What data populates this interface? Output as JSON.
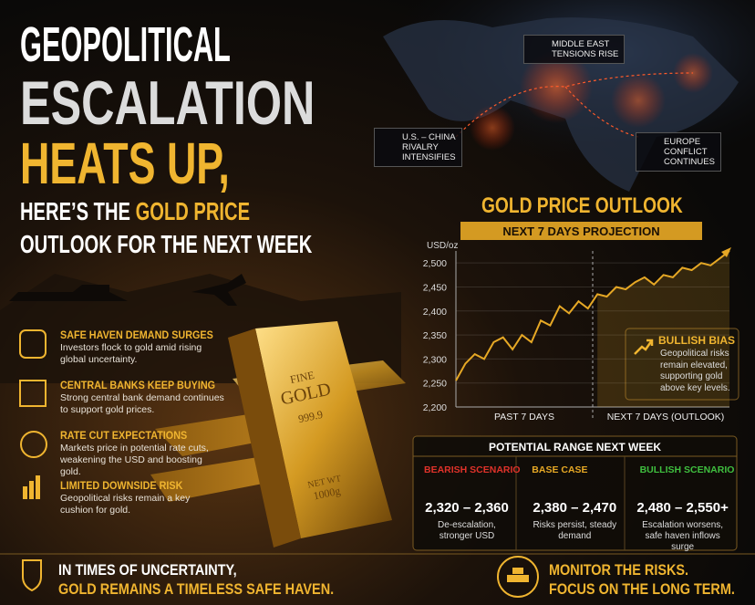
{
  "header": {
    "line1": "GEOPOLITICAL",
    "line2": "ESCALATION",
    "line3": "HEATS UP,",
    "sub1_a": "HERE’S THE",
    "sub1_b": "GOLD PRICE",
    "sub2": "OUTLOOK FOR THE NEXT WEEK"
  },
  "map_labels": [
    "MIDDLE EAST\nTENSIONS RISE",
    "U.S. – CHINA\nRIVALRY\nINTENSIFIES",
    "EUROPE\nCONFLICT\nCONTINUES"
  ],
  "gold_bar": {
    "l1": "FINE",
    "l2": "GOLD",
    "l3": "999.9",
    "l4": "NET WT",
    "l5": "1000g"
  },
  "chart": {
    "type": "line",
    "title": "GOLD PRICE OUTLOOK",
    "subtitle": "NEXT 7 DAYS PROJECTION",
    "y_label": "USD/oz",
    "color": "#e6a825",
    "ylim": [
      2200,
      2525
    ],
    "yticks": [
      {
        "value": 2200,
        "label": "2,200"
      },
      {
        "value": 2250,
        "label": "2,250"
      },
      {
        "value": 2300,
        "label": "2,300"
      },
      {
        "value": 2350,
        "label": "2,350"
      },
      {
        "value": 2400,
        "label": "2,400"
      },
      {
        "value": 2450,
        "label": "2,450"
      },
      {
        "value": 2500,
        "label": "2,500"
      }
    ],
    "values": [
      2255,
      2290,
      2310,
      2300,
      2335,
      2345,
      2320,
      2350,
      2335,
      2380,
      2370,
      2410,
      2395,
      2420,
      2405,
      2435,
      2430,
      2450,
      2445,
      2460,
      2470,
      2455,
      2475,
      2470,
      2490,
      2485,
      2500,
      2495,
      2510,
      2525
    ],
    "x_labels": [
      "PAST 7 DAYS",
      "NEXT 7 DAYS (OUTLOOK)"
    ]
  },
  "bullish_bias": {
    "title": "BULLISH BIAS",
    "text": "Geopolitical risks remain elevated, supporting gold above key levels."
  },
  "factors": [
    {
      "title": "SAFE HAVEN DEMAND SURGES",
      "text": "Investors flock to gold amid rising global uncertainty."
    },
    {
      "title": "CENTRAL BANKS KEEP BUYING",
      "text": "Strong central bank demand continues to support gold prices."
    },
    {
      "title": "RATE CUT EXPECTATIONS",
      "text": "Markets price in potential rate cuts, weakening the USD and boosting gold."
    },
    {
      "title": "LIMITED DOWNSIDE RISK",
      "text": "Geopolitical risks remain a key cushion for gold."
    }
  ],
  "range": {
    "title": "POTENTIAL RANGE NEXT WEEK",
    "scenarios": [
      {
        "name": "BEARISH SCENARIO",
        "color": "#e0322a",
        "range": "2,320 – 2,360",
        "text": "De-escalation, stronger USD"
      },
      {
        "name": "BASE CASE",
        "color": "#e6a825",
        "range": "2,380 – 2,470",
        "text": "Risks persist, steady demand"
      },
      {
        "name": "BULLISH SCENARIO",
        "color": "#3fbf3f",
        "range": "2,480 – 2,550+",
        "text": "Escalation worsens, safe haven inflows surge"
      }
    ]
  },
  "footer": {
    "left_a": "IN TIMES OF UNCERTAINTY,",
    "left_b": "GOLD REMAINS A TIMELESS",
    "left_c": "SAFE HAVEN.",
    "right_a": "MONITOR THE RISKS.",
    "right_b": "FOCUS ON THE LONG TERM."
  }
}
